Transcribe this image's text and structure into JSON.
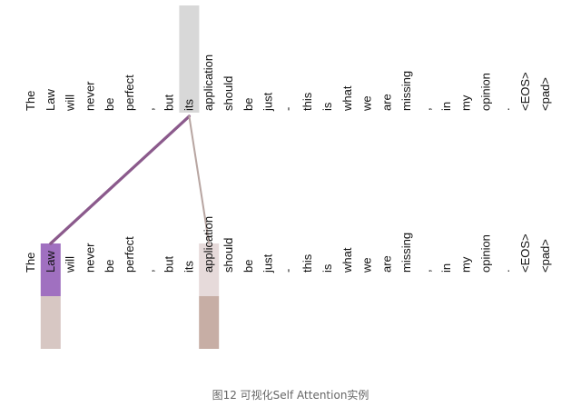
{
  "tokens": [
    "The",
    "Law",
    "will",
    "never",
    "be",
    "perfect",
    ",",
    "but",
    "its",
    "application",
    "should",
    "be",
    "just",
    "-",
    "this",
    "is",
    "what",
    "we",
    "are",
    "missing",
    ",",
    "in",
    "my",
    "opinion",
    ".",
    "<EOS>",
    "<pad>"
  ],
  "caption": "图12 可视化Self Attention实例",
  "query_index": 8,
  "query_highlight_color": "#d8d8d8",
  "attention_links": [
    {
      "target_index": 1,
      "weight": 0.75,
      "color": "#8b5a8c"
    },
    {
      "target_index": 9,
      "weight": 0.35,
      "color": "#b8a6a2"
    }
  ],
  "target_highlights": [
    {
      "target_index": 1,
      "top_color": "#a070c0",
      "bottom_color": "#d7c7c3"
    },
    {
      "target_index": 9,
      "top_color": "#e6dada",
      "bottom_color": "#c7aea5"
    }
  ]
}
